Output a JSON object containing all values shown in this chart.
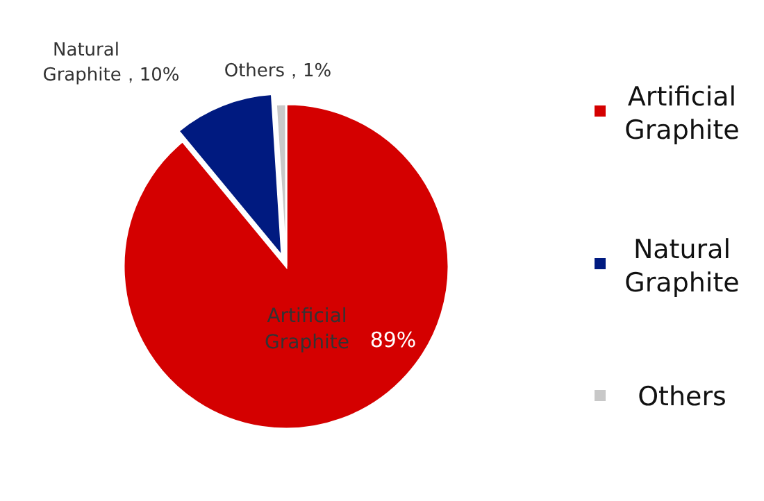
{
  "chart_data": {
    "type": "pie",
    "categories": [
      "Artificial Graphite",
      "Natural Graphite",
      "Others"
    ],
    "values": [
      89,
      10,
      1
    ],
    "colors": [
      "#d40000",
      "#001a80",
      "#c8c8c8"
    ],
    "value_labels": [
      "89%",
      "，10%",
      "，1%"
    ],
    "legend": "right"
  }
}
